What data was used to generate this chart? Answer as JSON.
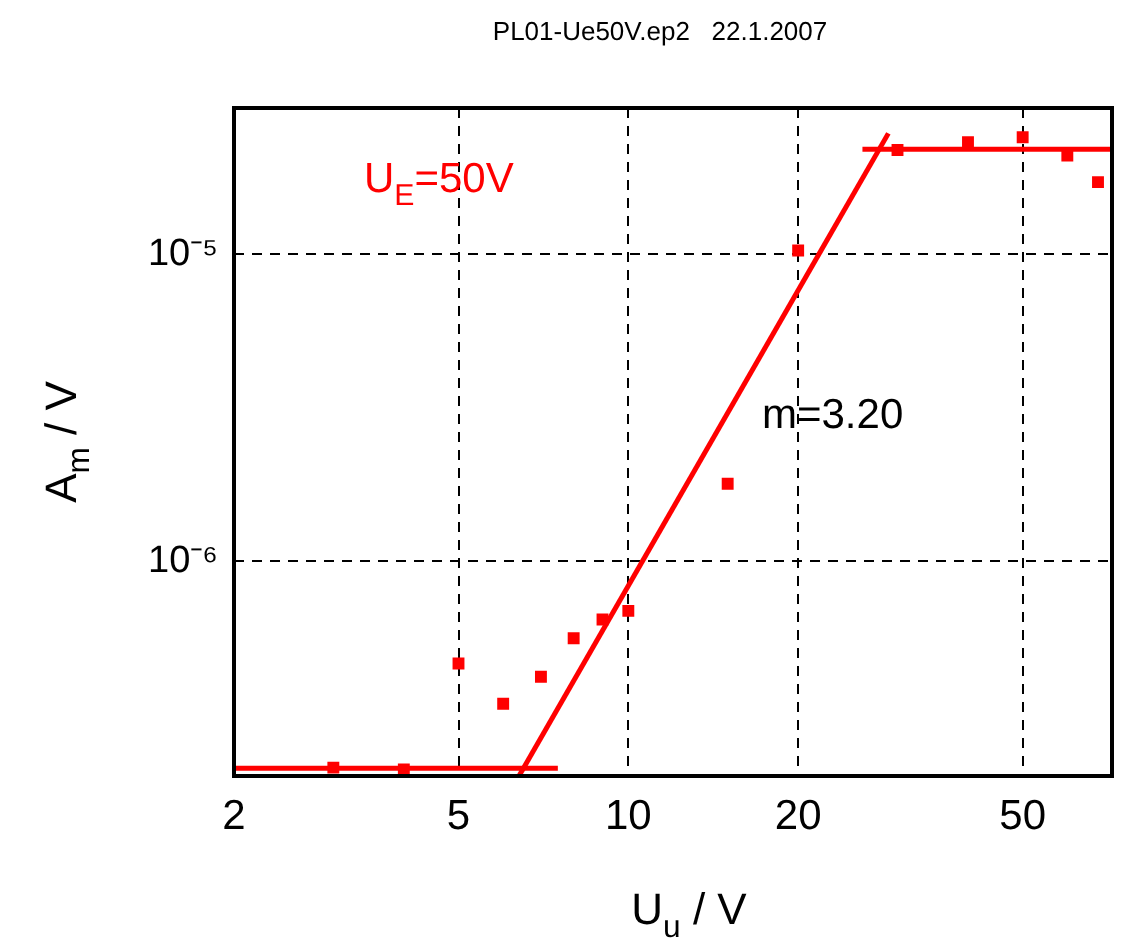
{
  "chart_data": {
    "type": "scatter",
    "title": "PL01-Ue50V.ep2   22.1.2007",
    "xlabel": "U$_{u}$ / V",
    "ylabel": "A$_{m}$ / V",
    "log": "xy",
    "xlim": [
      2,
      72
    ],
    "ylim": [
      2e-07,
      3e-05
    ],
    "xticks": [
      2,
      5,
      10,
      20,
      50
    ],
    "yticks": [
      {
        "value": 1e-06,
        "label": "10⁻⁶"
      },
      {
        "value": 1e-05,
        "label": "10⁻⁵"
      }
    ],
    "grid": true,
    "legend": false,
    "series": [
      {
        "type": "scatter",
        "marker": "square",
        "color": "#ff0000",
        "x": [
          3,
          4,
          5,
          6,
          7,
          8,
          9,
          10,
          15,
          20,
          30,
          40,
          50,
          60,
          68
        ],
        "values": [
          2.13e-07,
          2.1e-07,
          4.65e-07,
          3.44e-07,
          4.21e-07,
          5.62e-07,
          6.47e-07,
          6.9e-07,
          1.79e-06,
          1.03e-05,
          2.19e-05,
          2.32e-05,
          2.41e-05,
          2.1e-05,
          1.72e-05
        ]
      },
      {
        "type": "line",
        "marker": "none",
        "color": "#ff0000",
        "x": [
          2,
          7.5
        ],
        "values": [
          2.12e-07,
          2.12e-07
        ]
      },
      {
        "type": "line",
        "marker": "none",
        "color": "#ff0000",
        "x": [
          6.4,
          28.9
        ],
        "values": [
          2e-07,
          2.48e-05
        ]
      },
      {
        "type": "line",
        "marker": "none",
        "color": "#ff0000",
        "x": [
          26,
          72
        ],
        "values": [
          2.2e-05,
          2.2e-05
        ]
      }
    ],
    "annotations": [
      "U$_{E}$=50V",
      "m=3.20"
    ]
  }
}
